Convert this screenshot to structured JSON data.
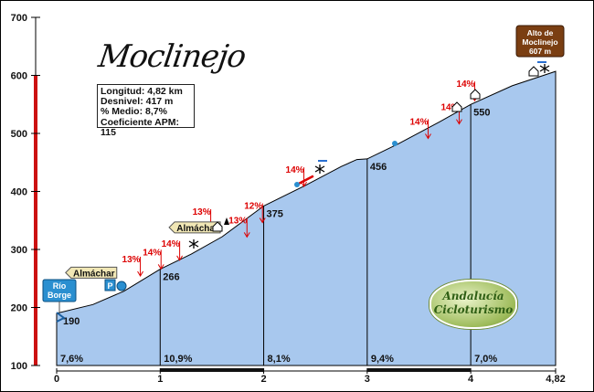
{
  "title": "Moclinejo",
  "stats": {
    "longitud": "Longitud: 4,82 km",
    "desnivel": "Desnivel: 417 m",
    "medio": "% Medio: 8,7%",
    "coeficiente": "Coeficiente APM: 115"
  },
  "start_sign": [
    "Río",
    "Borge"
  ],
  "end_sign": [
    "Alto de",
    "Moclinejo",
    "607 m"
  ],
  "brand": [
    "Andalucía",
    "Cicloturismo"
  ],
  "colors": {
    "fill": "#a8c8ee",
    "bar_red": "#cc1111",
    "sign_blue": "#2a8fd0",
    "sign_brown": "#7a3e12",
    "label_red": "#dd0000"
  },
  "chart_data": {
    "type": "area",
    "title": "Moclinejo",
    "xlabel": "",
    "ylabel": "",
    "xlim": [
      0,
      4.82
    ],
    "ylim": [
      100,
      700
    ],
    "x_ticks": [
      "0",
      "1",
      "2",
      "3",
      "4",
      "4,82"
    ],
    "y_ticks": [
      "100",
      "200",
      "300",
      "400",
      "500",
      "600",
      "700"
    ],
    "profile": [
      {
        "x": 0,
        "y": 190
      },
      {
        "x": 0.35,
        "y": 205
      },
      {
        "x": 0.65,
        "y": 228
      },
      {
        "x": 1.0,
        "y": 266
      },
      {
        "x": 1.3,
        "y": 292
      },
      {
        "x": 1.6,
        "y": 322
      },
      {
        "x": 2.0,
        "y": 375
      },
      {
        "x": 2.4,
        "y": 410
      },
      {
        "x": 2.75,
        "y": 443
      },
      {
        "x": 2.9,
        "y": 455
      },
      {
        "x": 3.0,
        "y": 456
      },
      {
        "x": 3.3,
        "y": 482
      },
      {
        "x": 3.7,
        "y": 520
      },
      {
        "x": 4.0,
        "y": 550
      },
      {
        "x": 4.4,
        "y": 582
      },
      {
        "x": 4.82,
        "y": 607
      }
    ],
    "km_markers": [
      {
        "x": 0,
        "label": "190"
      },
      {
        "x": 1,
        "label": "266"
      },
      {
        "x": 2,
        "label": "375"
      },
      {
        "x": 3,
        "label": "456"
      },
      {
        "x": 4,
        "label": "550"
      }
    ],
    "segments": [
      {
        "x": 0,
        "label": "7,6%"
      },
      {
        "x": 1,
        "label": "10,9%"
      },
      {
        "x": 2,
        "label": "8,1%"
      },
      {
        "x": 3,
        "label": "9,4%"
      },
      {
        "x": 4,
        "label": "7,0%"
      }
    ],
    "steep_labels": [
      {
        "x": 0.72,
        "y": 278,
        "label": "13%"
      },
      {
        "x": 0.92,
        "y": 290,
        "label": "14%"
      },
      {
        "x": 1.1,
        "y": 305,
        "label": "14%"
      },
      {
        "x": 1.4,
        "y": 360,
        "label": "13%"
      },
      {
        "x": 1.75,
        "y": 345,
        "label": "13%"
      },
      {
        "x": 1.9,
        "y": 370,
        "label": "12%"
      },
      {
        "x": 2.3,
        "y": 432,
        "label": "14%"
      },
      {
        "x": 3.5,
        "y": 515,
        "label": "14%"
      },
      {
        "x": 3.8,
        "y": 540,
        "label": "14%"
      },
      {
        "x": 3.95,
        "y": 580,
        "label": "14%"
      }
    ],
    "road_labels": [
      {
        "x": 0.36,
        "y": 260,
        "label": "Almáchar"
      },
      {
        "x": 1.36,
        "y": 338,
        "label": "Almáchar"
      }
    ],
    "red_bar_range": [
      100,
      600
    ],
    "grid": false
  }
}
